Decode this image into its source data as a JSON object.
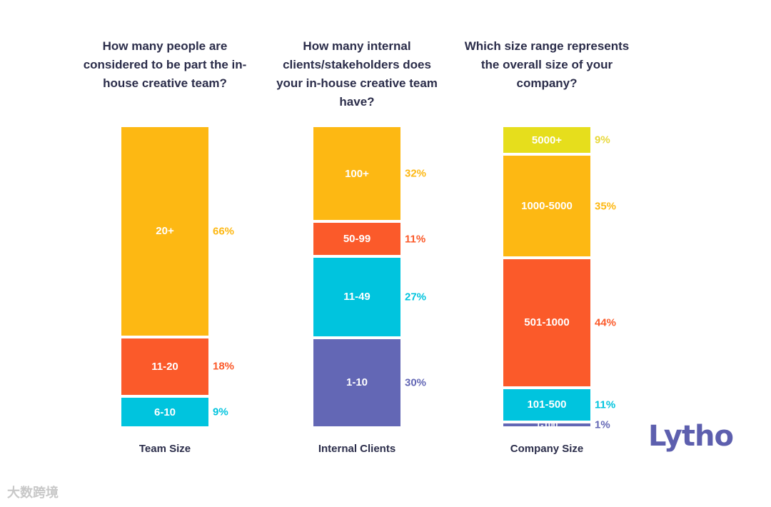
{
  "chart_data": [
    {
      "type": "bar",
      "stacked": true,
      "title": "How many people are considered to be part the in-house creative team?",
      "xlabel": "Team Size",
      "segments": [
        {
          "label": "6-10",
          "value": 9,
          "color": "#00c4de"
        },
        {
          "label": "11-20",
          "value": 18,
          "color": "#fb5a2a"
        },
        {
          "label": "20+",
          "value": 66,
          "color": "#fdb813"
        }
      ]
    },
    {
      "type": "bar",
      "stacked": true,
      "title": "How many internal clients/stakeholders does your in-house creative team have?",
      "xlabel": "Internal Clients",
      "segments": [
        {
          "label": "1-10",
          "value": 30,
          "color": "#6367b5"
        },
        {
          "label": "11-49",
          "value": 27,
          "color": "#00c4de"
        },
        {
          "label": "50-99",
          "value": 11,
          "color": "#fb5a2a"
        },
        {
          "label": "100+",
          "value": 32,
          "color": "#fdb813"
        }
      ]
    },
    {
      "type": "bar",
      "stacked": true,
      "title": "Which size range represents the overall size of your company?",
      "xlabel": "Company Size",
      "segments": [
        {
          "label": "1-100",
          "value": 1,
          "color": "#6367b5"
        },
        {
          "label": "101-500",
          "value": 11,
          "color": "#00c4de"
        },
        {
          "label": "501-1000",
          "value": 44,
          "color": "#fb5a2a"
        },
        {
          "label": "1000-5000",
          "value": 35,
          "color": "#fdb813"
        },
        {
          "label": "5000+",
          "value": 9,
          "color": "#e6de1c",
          "pct_color": "#e8d83a"
        }
      ]
    }
  ],
  "logo": "Lytho",
  "watermark": "大数跨境"
}
